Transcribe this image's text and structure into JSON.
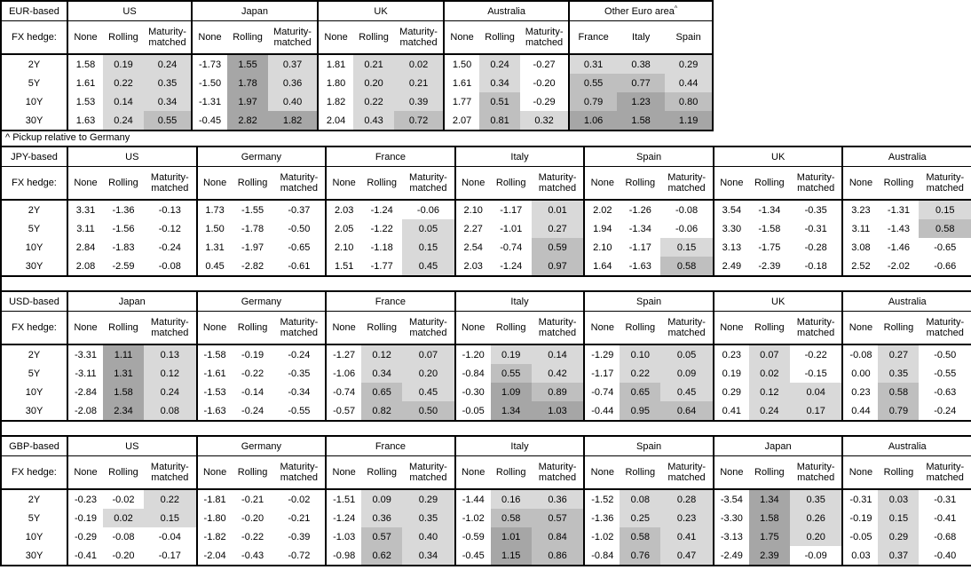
{
  "footnote": "^ Pickup relative to Germany",
  "colors": {
    "background": "#ffffff",
    "border": "#000000",
    "shade_light": "#d9d9d9",
    "shade_medium": "#bfbfbf",
    "shade_dark": "#a6a6a6"
  },
  "shading_legend": {
    "white": "value < 0",
    "light": "0 <= value < 0.5",
    "medium": "0.5 <= value < 1.0",
    "dark": "value >= 1.0",
    "note": "shading applies only to hedged columns (Rolling, Maturity-matched) and to all Other Euro area columns; None column never shaded"
  },
  "chart_data": [
    {
      "type": "table",
      "title": "EUR-based",
      "row_header": "FX hedge:",
      "rows": [
        "2Y",
        "5Y",
        "10Y",
        "30Y"
      ],
      "groups": [
        {
          "name": "US",
          "columns": [
            "None",
            "Rolling",
            "Maturity-matched"
          ],
          "shaded_columns": [
            1,
            2
          ],
          "values": [
            [
              1.58,
              0.19,
              0.24
            ],
            [
              1.61,
              0.22,
              0.35
            ],
            [
              1.53,
              0.14,
              0.34
            ],
            [
              1.63,
              0.24,
              0.55
            ]
          ]
        },
        {
          "name": "Japan",
          "columns": [
            "None",
            "Rolling",
            "Maturity-matched"
          ],
          "shaded_columns": [
            1,
            2
          ],
          "values": [
            [
              -1.73,
              1.55,
              0.37
            ],
            [
              -1.5,
              1.78,
              0.36
            ],
            [
              -1.31,
              1.97,
              0.4
            ],
            [
              -0.45,
              2.82,
              1.82
            ]
          ]
        },
        {
          "name": "UK",
          "columns": [
            "None",
            "Rolling",
            "Maturity-matched"
          ],
          "shaded_columns": [
            1,
            2
          ],
          "values": [
            [
              1.81,
              0.21,
              0.02
            ],
            [
              1.8,
              0.2,
              0.21
            ],
            [
              1.82,
              0.22,
              0.39
            ],
            [
              2.04,
              0.43,
              0.72
            ]
          ]
        },
        {
          "name": "Australia",
          "columns": [
            "None",
            "Rolling",
            "Maturity-matched"
          ],
          "shaded_columns": [
            1,
            2
          ],
          "values": [
            [
              1.5,
              0.24,
              -0.27
            ],
            [
              1.61,
              0.34,
              -0.2
            ],
            [
              1.77,
              0.51,
              -0.29
            ],
            [
              2.07,
              0.81,
              0.32
            ]
          ]
        },
        {
          "name": "Other Euro area",
          "superscript": "^",
          "columns": [
            "France",
            "Italy",
            "Spain"
          ],
          "shaded_columns": [
            0,
            1,
            2
          ],
          "values": [
            [
              0.31,
              0.38,
              0.29
            ],
            [
              0.55,
              0.77,
              0.44
            ],
            [
              0.79,
              1.23,
              0.8
            ],
            [
              1.06,
              1.58,
              1.19
            ]
          ]
        }
      ]
    },
    {
      "type": "table",
      "title": "JPY-based",
      "row_header": "FX hedge:",
      "rows": [
        "2Y",
        "5Y",
        "10Y",
        "30Y"
      ],
      "groups": [
        {
          "name": "US",
          "columns": [
            "None",
            "Rolling",
            "Maturity-matched"
          ],
          "shaded_columns": [
            1,
            2
          ],
          "values": [
            [
              3.31,
              -1.36,
              -0.13
            ],
            [
              3.11,
              -1.56,
              -0.12
            ],
            [
              2.84,
              -1.83,
              -0.24
            ],
            [
              2.08,
              -2.59,
              -0.08
            ]
          ]
        },
        {
          "name": "Germany",
          "columns": [
            "None",
            "Rolling",
            "Maturity-matched"
          ],
          "shaded_columns": [
            1,
            2
          ],
          "values": [
            [
              1.73,
              -1.55,
              -0.37
            ],
            [
              1.5,
              -1.78,
              -0.5
            ],
            [
              1.31,
              -1.97,
              -0.65
            ],
            [
              0.45,
              -2.82,
              -0.61
            ]
          ]
        },
        {
          "name": "France",
          "columns": [
            "None",
            "Rolling",
            "Maturity-matched"
          ],
          "shaded_columns": [
            1,
            2
          ],
          "values": [
            [
              2.03,
              -1.24,
              -0.06
            ],
            [
              2.05,
              -1.22,
              0.05
            ],
            [
              2.1,
              -1.18,
              0.15
            ],
            [
              1.51,
              -1.77,
              0.45
            ]
          ]
        },
        {
          "name": "Italy",
          "columns": [
            "None",
            "Rolling",
            "Maturity-matched"
          ],
          "shaded_columns": [
            1,
            2
          ],
          "values": [
            [
              2.1,
              -1.17,
              0.01
            ],
            [
              2.27,
              -1.01,
              0.27
            ],
            [
              2.54,
              -0.74,
              0.59
            ],
            [
              2.03,
              -1.24,
              0.97
            ]
          ]
        },
        {
          "name": "Spain",
          "columns": [
            "None",
            "Rolling",
            "Maturity-matched"
          ],
          "shaded_columns": [
            1,
            2
          ],
          "values": [
            [
              2.02,
              -1.26,
              -0.08
            ],
            [
              1.94,
              -1.34,
              -0.06
            ],
            [
              2.1,
              -1.17,
              0.15
            ],
            [
              1.64,
              -1.63,
              0.58
            ]
          ]
        },
        {
          "name": "UK",
          "columns": [
            "None",
            "Rolling",
            "Maturity-matched"
          ],
          "shaded_columns": [
            1,
            2
          ],
          "values": [
            [
              3.54,
              -1.34,
              -0.35
            ],
            [
              3.3,
              -1.58,
              -0.31
            ],
            [
              3.13,
              -1.75,
              -0.28
            ],
            [
              2.49,
              -2.39,
              -0.18
            ]
          ]
        },
        {
          "name": "Australia",
          "columns": [
            "None",
            "Rolling",
            "Maturity-matched"
          ],
          "shaded_columns": [
            1,
            2
          ],
          "values": [
            [
              3.23,
              -1.31,
              0.15
            ],
            [
              3.11,
              -1.43,
              0.58
            ],
            [
              3.08,
              -1.46,
              -0.65
            ],
            [
              2.52,
              -2.02,
              -0.66
            ]
          ]
        }
      ]
    },
    {
      "type": "table",
      "title": "USD-based",
      "row_header": "FX hedge:",
      "rows": [
        "2Y",
        "5Y",
        "10Y",
        "30Y"
      ],
      "groups": [
        {
          "name": "Japan",
          "columns": [
            "None",
            "Rolling",
            "Maturity-matched"
          ],
          "shaded_columns": [
            1,
            2
          ],
          "values": [
            [
              -3.31,
              1.11,
              0.13
            ],
            [
              -3.11,
              1.31,
              0.12
            ],
            [
              -2.84,
              1.58,
              0.24
            ],
            [
              -2.08,
              2.34,
              0.08
            ]
          ]
        },
        {
          "name": "Germany",
          "columns": [
            "None",
            "Rolling",
            "Maturity-matched"
          ],
          "shaded_columns": [
            1,
            2
          ],
          "values": [
            [
              -1.58,
              -0.19,
              -0.24
            ],
            [
              -1.61,
              -0.22,
              -0.35
            ],
            [
              -1.53,
              -0.14,
              -0.34
            ],
            [
              -1.63,
              -0.24,
              -0.55
            ]
          ]
        },
        {
          "name": "France",
          "columns": [
            "None",
            "Rolling",
            "Maturity-matched"
          ],
          "shaded_columns": [
            1,
            2
          ],
          "values": [
            [
              -1.27,
              0.12,
              0.07
            ],
            [
              -1.06,
              0.34,
              0.2
            ],
            [
              -0.74,
              0.65,
              0.45
            ],
            [
              -0.57,
              0.82,
              0.5
            ]
          ]
        },
        {
          "name": "Italy",
          "columns": [
            "None",
            "Rolling",
            "Maturity-matched"
          ],
          "shaded_columns": [
            1,
            2
          ],
          "values": [
            [
              -1.2,
              0.19,
              0.14
            ],
            [
              -0.84,
              0.55,
              0.42
            ],
            [
              -0.3,
              1.09,
              0.89
            ],
            [
              -0.05,
              1.34,
              1.03
            ]
          ]
        },
        {
          "name": "Spain",
          "columns": [
            "None",
            "Rolling",
            "Maturity-matched"
          ],
          "shaded_columns": [
            1,
            2
          ],
          "values": [
            [
              -1.29,
              0.1,
              0.05
            ],
            [
              -1.17,
              0.22,
              0.09
            ],
            [
              -0.74,
              0.65,
              0.45
            ],
            [
              -0.44,
              0.95,
              0.64
            ]
          ]
        },
        {
          "name": "UK",
          "columns": [
            "None",
            "Rolling",
            "Maturity-matched"
          ],
          "shaded_columns": [
            1,
            2
          ],
          "values": [
            [
              0.23,
              0.07,
              -0.22
            ],
            [
              0.19,
              0.02,
              -0.15
            ],
            [
              0.29,
              0.12,
              0.04
            ],
            [
              0.41,
              0.24,
              0.17
            ]
          ]
        },
        {
          "name": "Australia",
          "columns": [
            "None",
            "Rolling",
            "Maturity-matched"
          ],
          "shaded_columns": [
            1,
            2
          ],
          "values": [
            [
              -0.08,
              0.27,
              -0.5
            ],
            [
              0.0,
              0.35,
              -0.55
            ],
            [
              0.23,
              0.58,
              -0.63
            ],
            [
              0.44,
              0.79,
              -0.24
            ]
          ]
        }
      ]
    },
    {
      "type": "table",
      "title": "GBP-based",
      "row_header": "FX hedge:",
      "rows": [
        "2Y",
        "5Y",
        "10Y",
        "30Y"
      ],
      "groups": [
        {
          "name": "US",
          "columns": [
            "None",
            "Rolling",
            "Maturity-matched"
          ],
          "shaded_columns": [
            1,
            2
          ],
          "values": [
            [
              -0.23,
              -0.02,
              0.22
            ],
            [
              -0.19,
              0.02,
              0.15
            ],
            [
              -0.29,
              -0.08,
              -0.04
            ],
            [
              -0.41,
              -0.2,
              -0.17
            ]
          ]
        },
        {
          "name": "Germany",
          "columns": [
            "None",
            "Rolling",
            "Maturity-matched"
          ],
          "shaded_columns": [
            1,
            2
          ],
          "values": [
            [
              -1.81,
              -0.21,
              -0.02
            ],
            [
              -1.8,
              -0.2,
              -0.21
            ],
            [
              -1.82,
              -0.22,
              -0.39
            ],
            [
              -2.04,
              -0.43,
              -0.72
            ]
          ]
        },
        {
          "name": "France",
          "columns": [
            "None",
            "Rolling",
            "Maturity-matched"
          ],
          "shaded_columns": [
            1,
            2
          ],
          "values": [
            [
              -1.51,
              0.09,
              0.29
            ],
            [
              -1.24,
              0.36,
              0.35
            ],
            [
              -1.03,
              0.57,
              0.4
            ],
            [
              -0.98,
              0.62,
              0.34
            ]
          ]
        },
        {
          "name": "Italy",
          "columns": [
            "None",
            "Rolling",
            "Maturity-matched"
          ],
          "shaded_columns": [
            1,
            2
          ],
          "values": [
            [
              -1.44,
              0.16,
              0.36
            ],
            [
              -1.02,
              0.58,
              0.57
            ],
            [
              -0.59,
              1.01,
              0.84
            ],
            [
              -0.45,
              1.15,
              0.86
            ]
          ]
        },
        {
          "name": "Spain",
          "columns": [
            "None",
            "Rolling",
            "Maturity-matched"
          ],
          "shaded_columns": [
            1,
            2
          ],
          "values": [
            [
              -1.52,
              0.08,
              0.28
            ],
            [
              -1.36,
              0.25,
              0.23
            ],
            [
              -1.02,
              0.58,
              0.41
            ],
            [
              -0.84,
              0.76,
              0.47
            ]
          ]
        },
        {
          "name": "Japan",
          "columns": [
            "None",
            "Rolling",
            "Maturity-matched"
          ],
          "shaded_columns": [
            1,
            2
          ],
          "values": [
            [
              -3.54,
              1.34,
              0.35
            ],
            [
              -3.3,
              1.58,
              0.26
            ],
            [
              -3.13,
              1.75,
              0.2
            ],
            [
              -2.49,
              2.39,
              -0.09
            ]
          ]
        },
        {
          "name": "Australia",
          "columns": [
            "None",
            "Rolling",
            "Maturity-matched"
          ],
          "shaded_columns": [
            1,
            2
          ],
          "values": [
            [
              -0.31,
              0.03,
              -0.31
            ],
            [
              -0.19,
              0.15,
              -0.41
            ],
            [
              -0.05,
              0.29,
              -0.68
            ],
            [
              0.03,
              0.37,
              -0.4
            ]
          ]
        }
      ]
    }
  ]
}
